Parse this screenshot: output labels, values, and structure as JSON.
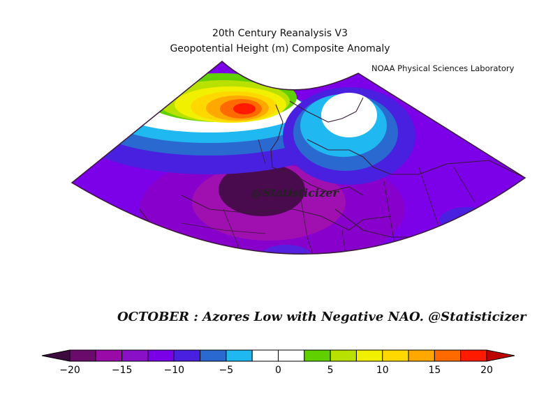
{
  "header": {
    "title_line1": "20th Century Reanalysis V3",
    "title_line2": "Geopotential Height (m) Composite Anomaly",
    "credit": "NOAA Physical Sciences Laboratory"
  },
  "map": {
    "watermark": "@Statisticizer",
    "caption": "OCTOBER : Azores Low with Negative NAO.  @Statisticizer",
    "region": "North Atlantic / Europe / North Africa",
    "projection": "conic sector",
    "features": [
      {
        "name": "positive anomaly max over Greenland / Iceland",
        "value": "> 20"
      },
      {
        "name": "negative anomaly min west of Iberia / Azores",
        "value": "< -20"
      },
      {
        "name": "near-zero anomaly over Scandinavia",
        "value": "0"
      }
    ]
  },
  "colorbar": {
    "labels": [
      "-20",
      "-15",
      "-10",
      "-5",
      "0",
      "5",
      "10",
      "15",
      "20"
    ],
    "under_color": "#3d0a3d",
    "over_color": "#c00000",
    "colors": [
      "#6a0a6a",
      "#9a0aa8",
      "#8a10c8",
      "#7a00e8",
      "#4a20e0",
      "#2a6ad0",
      "#20b8f0",
      "#ffffff",
      "#ffffff",
      "#60d000",
      "#b8e000",
      "#f0f000",
      "#ffd800",
      "#ffa800",
      "#ff6a00",
      "#ff1a00"
    ]
  }
}
